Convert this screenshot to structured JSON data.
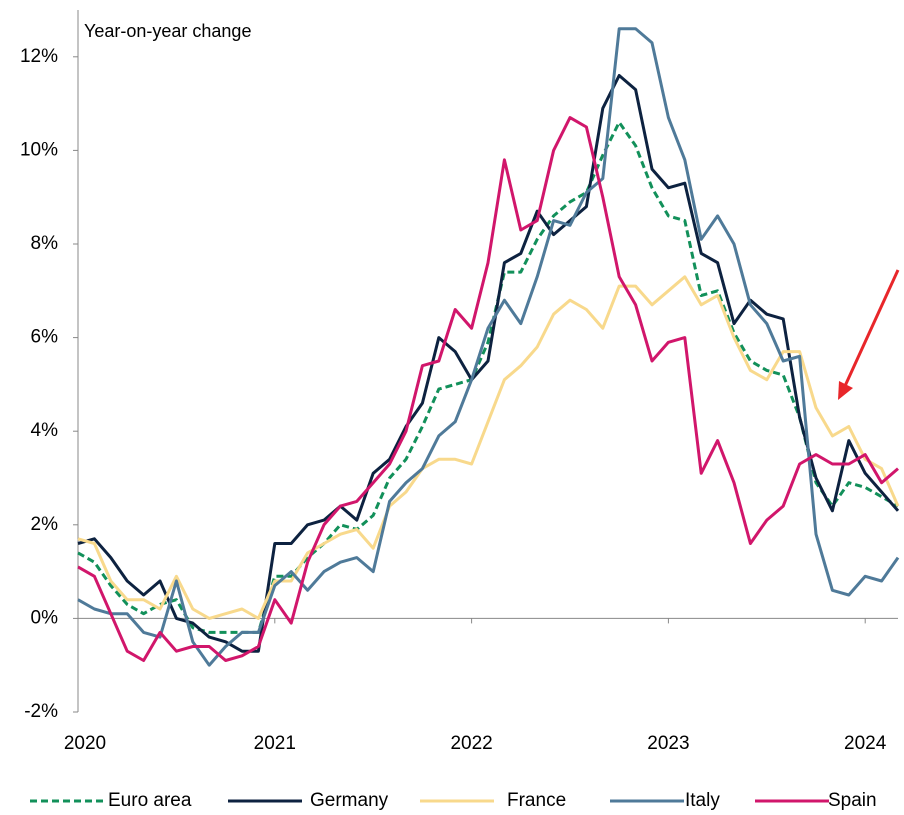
{
  "chart_data": {
    "type": "line",
    "annotation": "Year-on-year change",
    "x": [
      0,
      1,
      2,
      3,
      4,
      5,
      6,
      7,
      8,
      9,
      10,
      11,
      12,
      13,
      14,
      15,
      16,
      17,
      18,
      19,
      20,
      21,
      22,
      23,
      24,
      25,
      26,
      27,
      28,
      29,
      30,
      31,
      32,
      33,
      34,
      35,
      36,
      37,
      38,
      39,
      40,
      41,
      42,
      43,
      44,
      45,
      46,
      47,
      48,
      49,
      50
    ],
    "xlim": [
      0,
      50
    ],
    "xticks": [
      {
        "value": 0,
        "label": "2020"
      },
      {
        "value": 12,
        "label": "2021"
      },
      {
        "value": 24,
        "label": "2022"
      },
      {
        "value": 36,
        "label": "2023"
      },
      {
        "value": 48,
        "label": "2024"
      }
    ],
    "ylim": [
      -2,
      13
    ],
    "yticks": [
      {
        "value": -2,
        "label": "-2%"
      },
      {
        "value": 0,
        "label": "0%"
      },
      {
        "value": 2,
        "label": "2%"
      },
      {
        "value": 4,
        "label": "4%"
      },
      {
        "value": 6,
        "label": "6%"
      },
      {
        "value": 8,
        "label": "8%"
      },
      {
        "value": 10,
        "label": "10%"
      },
      {
        "value": 12,
        "label": "12%"
      }
    ],
    "grid": false,
    "legend": "bottom",
    "series": [
      {
        "name": "Euro area",
        "color": "#12905a",
        "dashed": true,
        "values": [
          1.4,
          1.2,
          0.7,
          0.3,
          0.1,
          0.3,
          0.4,
          -0.2,
          -0.3,
          -0.3,
          -0.3,
          -0.3,
          0.9,
          0.9,
          1.3,
          1.6,
          2.0,
          1.9,
          2.2,
          3.0,
          3.4,
          4.1,
          4.9,
          5.0,
          5.1,
          5.9,
          7.4,
          7.4,
          8.1,
          8.6,
          8.9,
          9.1,
          9.9,
          10.6,
          10.1,
          9.2,
          8.6,
          8.5,
          6.9,
          7.0,
          6.1,
          5.5,
          5.3,
          5.2,
          4.3,
          2.9,
          2.4,
          2.9,
          2.8,
          2.6,
          2.4
        ]
      },
      {
        "name": "Germany",
        "color": "#0d2240",
        "values": [
          1.6,
          1.7,
          1.3,
          0.8,
          0.5,
          0.8,
          0.0,
          -0.1,
          -0.4,
          -0.5,
          -0.7,
          -0.7,
          1.6,
          1.6,
          2.0,
          2.1,
          2.4,
          2.1,
          3.1,
          3.4,
          4.1,
          4.6,
          6.0,
          5.7,
          5.1,
          5.5,
          7.6,
          7.8,
          8.7,
          8.2,
          8.5,
          8.8,
          10.9,
          11.6,
          11.3,
          9.6,
          9.2,
          9.3,
          7.8,
          7.6,
          6.3,
          6.8,
          6.5,
          6.4,
          4.3,
          3.0,
          2.3,
          3.8,
          3.1,
          2.7,
          2.3
        ]
      },
      {
        "name": "France",
        "color": "#f8d98c",
        "values": [
          1.7,
          1.6,
          0.8,
          0.4,
          0.4,
          0.2,
          0.9,
          0.2,
          0.0,
          0.1,
          0.2,
          0.0,
          0.8,
          0.8,
          1.4,
          1.6,
          1.8,
          1.9,
          1.5,
          2.4,
          2.7,
          3.2,
          3.4,
          3.4,
          3.3,
          4.2,
          5.1,
          5.4,
          5.8,
          6.5,
          6.8,
          6.6,
          6.2,
          7.1,
          7.1,
          6.7,
          7.0,
          7.3,
          6.7,
          6.9,
          6.0,
          5.3,
          5.1,
          5.7,
          5.7,
          4.5,
          3.9,
          4.1,
          3.4,
          3.2,
          2.4
        ]
      },
      {
        "name": "Italy",
        "color": "#4f7a99",
        "values": [
          0.4,
          0.2,
          0.1,
          0.1,
          -0.3,
          -0.4,
          0.8,
          -0.5,
          -1.0,
          -0.6,
          -0.3,
          -0.3,
          0.7,
          1.0,
          0.6,
          1.0,
          1.2,
          1.3,
          1.0,
          2.5,
          2.9,
          3.2,
          3.9,
          4.2,
          5.1,
          6.2,
          6.8,
          6.3,
          7.3,
          8.5,
          8.4,
          9.1,
          9.4,
          12.6,
          12.6,
          12.3,
          10.7,
          9.8,
          8.1,
          8.6,
          8.0,
          6.7,
          6.3,
          5.5,
          5.6,
          1.8,
          0.6,
          0.5,
          0.9,
          0.8,
          1.3
        ]
      },
      {
        "name": "Spain",
        "color": "#d1166b",
        "values": [
          1.1,
          0.9,
          0.1,
          -0.7,
          -0.9,
          -0.3,
          -0.7,
          -0.6,
          -0.6,
          -0.9,
          -0.8,
          -0.6,
          0.4,
          -0.1,
          1.2,
          2.0,
          2.4,
          2.5,
          2.9,
          3.3,
          4.0,
          5.4,
          5.5,
          6.6,
          6.2,
          7.6,
          9.8,
          8.3,
          8.5,
          10.0,
          10.7,
          10.5,
          9.0,
          7.3,
          6.7,
          5.5,
          5.9,
          6.0,
          3.1,
          3.8,
          2.9,
          1.6,
          2.1,
          2.4,
          3.3,
          3.5,
          3.3,
          3.3,
          3.5,
          2.9,
          3.2
        ]
      }
    ]
  }
}
